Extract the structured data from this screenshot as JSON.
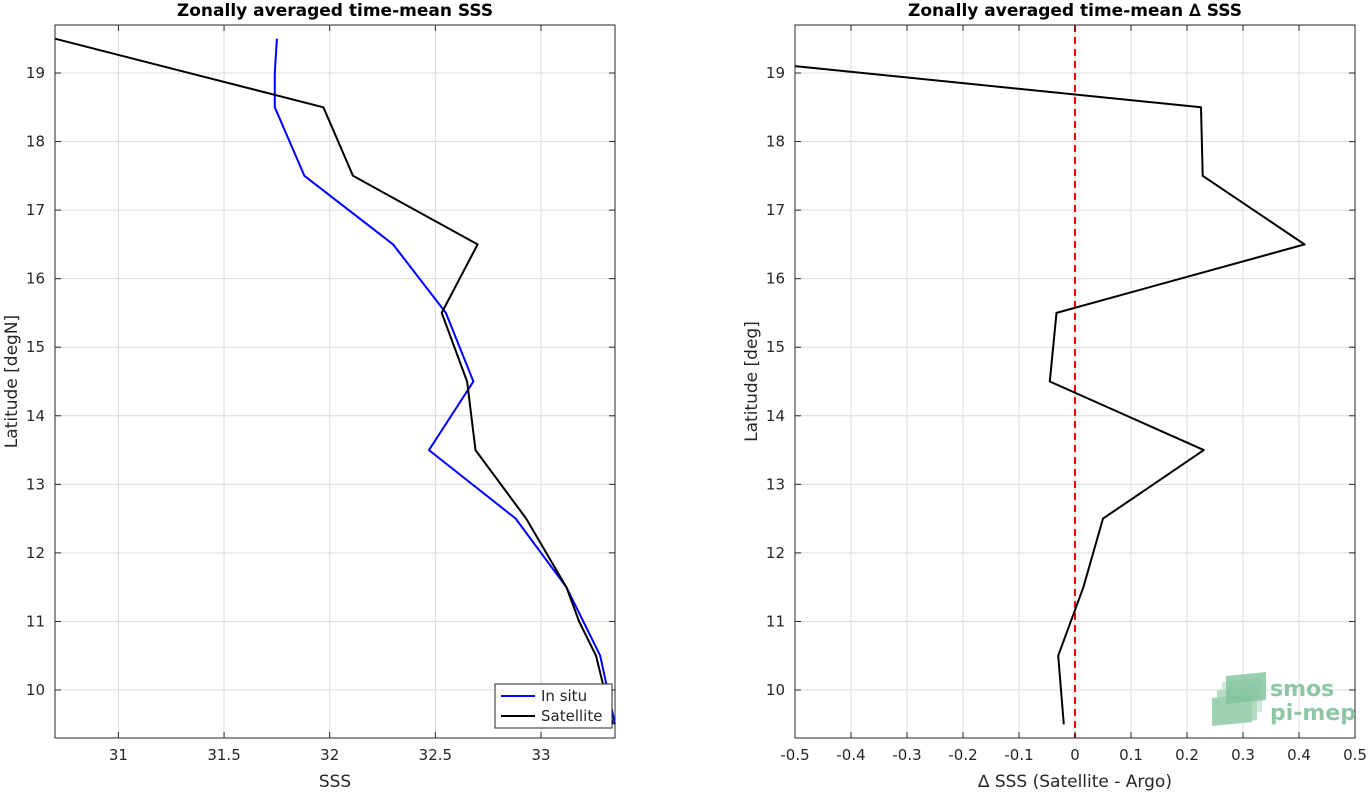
{
  "chart_data": [
    {
      "type": "line",
      "title": "Zonally averaged time-mean SSS",
      "xlabel": "SSS",
      "ylabel": "Latitude [degN]",
      "xlim": [
        30.7,
        33.35
      ],
      "ylim": [
        9.3,
        19.7
      ],
      "xticks": [
        31,
        31.5,
        32,
        32.5,
        33
      ],
      "xtick_labels": [
        "31",
        "31.5",
        "32",
        "32.5",
        "33"
      ],
      "yticks": [
        10,
        11,
        12,
        13,
        14,
        15,
        16,
        17,
        18,
        19
      ],
      "ytick_labels": [
        "10",
        "11",
        "12",
        "13",
        "14",
        "15",
        "16",
        "17",
        "18",
        "19"
      ],
      "grid": true,
      "legend": {
        "position": "bottom-right"
      },
      "series": [
        {
          "name": "In situ",
          "color": "#0000ff",
          "x": [
            31.75,
            31.74,
            31.74,
            31.88,
            32.3,
            32.55,
            32.68,
            32.47,
            32.88,
            33.12,
            33.28,
            33.35
          ],
          "y": [
            19.5,
            19.0,
            18.5,
            17.5,
            16.5,
            15.5,
            14.5,
            13.5,
            12.5,
            11.5,
            10.5,
            9.5
          ]
        },
        {
          "name": "Satellite",
          "color": "#000000",
          "x": [
            30.7,
            31.97,
            32.11,
            32.7,
            32.53,
            32.65,
            32.69,
            32.93,
            33.12,
            33.18,
            33.26,
            33.34
          ],
          "y": [
            19.5,
            18.5,
            17.5,
            16.5,
            15.5,
            14.5,
            13.5,
            12.5,
            11.5,
            11.0,
            10.5,
            9.5
          ]
        }
      ]
    },
    {
      "type": "line",
      "title": "Zonally averaged time-mean ∆ SSS",
      "xlabel": "∆ SSS (Satellite - Argo)",
      "ylabel": "Latitude [deg]",
      "xlim": [
        -0.5,
        0.5
      ],
      "ylim": [
        9.3,
        19.7
      ],
      "xticks": [
        -0.5,
        -0.4,
        -0.3,
        -0.2,
        -0.1,
        0,
        0.1,
        0.2,
        0.3,
        0.4,
        0.5
      ],
      "xtick_labels": [
        "-0.5",
        "-0.4",
        "-0.3",
        "-0.2",
        "-0.1",
        "0",
        "0.1",
        "0.2",
        "0.3",
        "0.4",
        "0.5"
      ],
      "yticks": [
        10,
        11,
        12,
        13,
        14,
        15,
        16,
        17,
        18,
        19
      ],
      "ytick_labels": [
        "10",
        "11",
        "12",
        "13",
        "14",
        "15",
        "16",
        "17",
        "18",
        "19"
      ],
      "grid": true,
      "reference_line": {
        "x": 0,
        "color": "#ff0000",
        "style": "dashed"
      },
      "series": [
        {
          "color": "#000000",
          "x": [
            -0.5,
            0.225,
            0.228,
            0.41,
            -0.033,
            -0.045,
            0.23,
            0.05,
            0.015,
            -0.03,
            -0.02
          ],
          "y": [
            19.1,
            18.5,
            17.5,
            16.5,
            15.5,
            14.5,
            13.5,
            12.5,
            11.5,
            10.5,
            9.5
          ]
        }
      ]
    }
  ],
  "logo": {
    "line1": "smos",
    "line2": "pi-mep"
  }
}
